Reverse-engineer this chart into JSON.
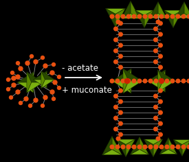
{
  "background_color": "#000000",
  "arrow_color": "#ffffff",
  "text_color": "#ffffff",
  "line1": "- acetate",
  "line2": "+ muconate",
  "olive_color": "#4a7000",
  "olive_light": "#7ab010",
  "olive_dark": "#2a4a00",
  "olive_mid": "#5a8800",
  "orange_color": "#e85010",
  "red_color": "#cc1100",
  "bond_color": "#999999",
  "font_size": 8.5
}
